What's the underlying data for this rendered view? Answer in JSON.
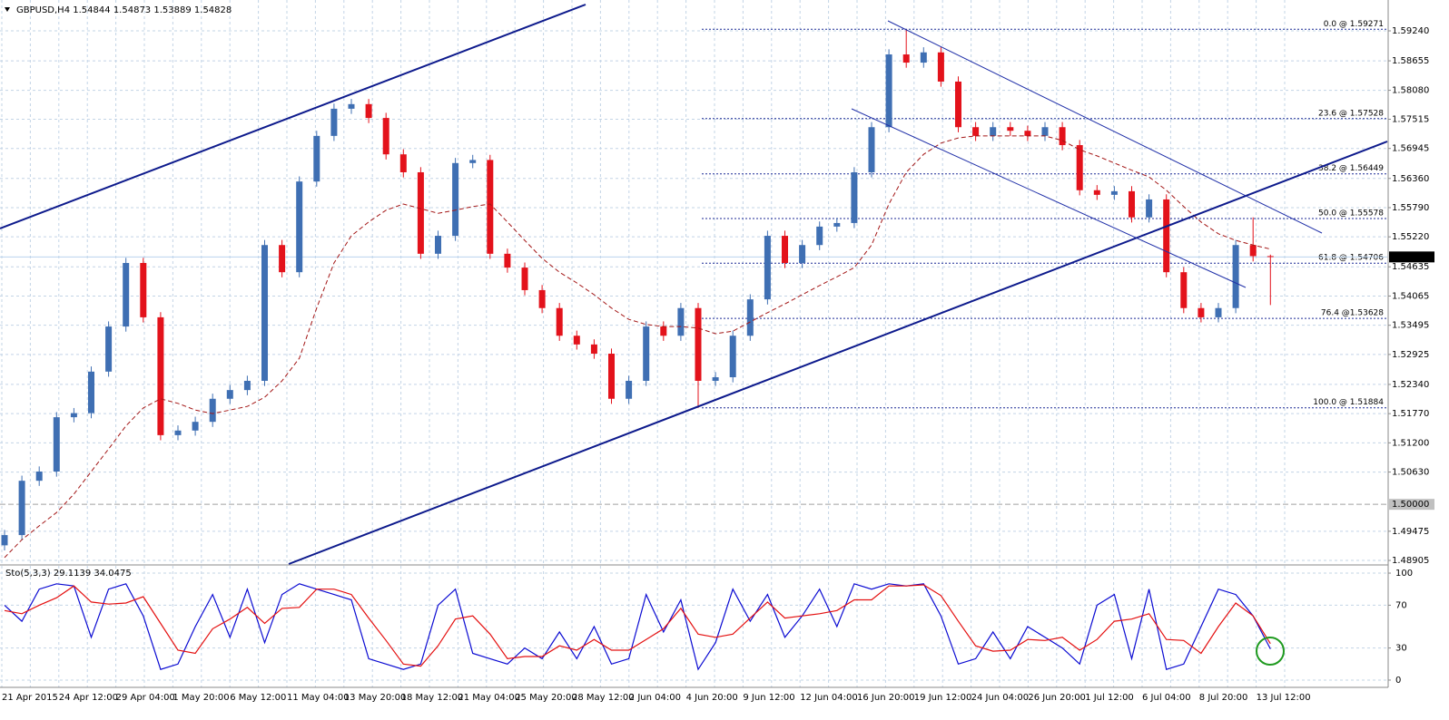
{
  "chart_data": [
    {
      "type": "candlestick",
      "symbol": "GBPUSD,H4",
      "open": [
        1.492,
        1.494,
        1.5046,
        1.5064,
        1.517,
        1.5178,
        1.5259,
        1.5347,
        1.5471,
        1.5365,
        1.5135,
        1.5144,
        1.5161,
        1.5206,
        1.5223,
        1.5241,
        1.5506,
        1.5453,
        1.563,
        1.5719,
        1.5772,
        1.5781,
        1.5754,
        1.5683,
        1.5648,
        1.5489,
        1.5524,
        1.5666,
        1.5672,
        1.5489,
        1.5462,
        1.5418,
        1.5383,
        1.5329,
        1.5312,
        1.5294,
        1.5206,
        1.5241,
        1.5347,
        1.5329,
        1.5383,
        1.5241,
        1.5248,
        1.5329,
        1.54,
        1.5524,
        1.5471,
        1.5506,
        1.5542,
        1.5549,
        1.5648,
        1.5736,
        1.5878,
        1.5862,
        1.5882,
        1.5825,
        1.5736,
        1.5719,
        1.5736,
        1.5729,
        1.5719,
        1.5736,
        1.5701,
        1.5613,
        1.5604,
        1.5611,
        1.556,
        1.5595,
        1.5453,
        1.5383,
        1.5365,
        1.5383,
        1.5506,
        1.54844
      ],
      "high": [
        1.495,
        1.5056,
        1.5074,
        1.518,
        1.5188,
        1.5269,
        1.5357,
        1.5481,
        1.5481,
        1.5375,
        1.5154,
        1.5171,
        1.5216,
        1.5233,
        1.5251,
        1.5516,
        1.5516,
        1.564,
        1.5729,
        1.5782,
        1.5791,
        1.5791,
        1.5764,
        1.5693,
        1.5658,
        1.5534,
        1.5676,
        1.5682,
        1.5682,
        1.5499,
        1.5472,
        1.5428,
        1.5393,
        1.5339,
        1.5322,
        1.5304,
        1.5251,
        1.5357,
        1.5357,
        1.5393,
        1.5393,
        1.5258,
        1.5339,
        1.541,
        1.5534,
        1.5534,
        1.5516,
        1.5552,
        1.5559,
        1.5658,
        1.5746,
        1.5888,
        1.5927,
        1.5892,
        1.5892,
        1.5835,
        1.5746,
        1.5746,
        1.5746,
        1.5739,
        1.5746,
        1.5746,
        1.5711,
        1.5623,
        1.5621,
        1.5621,
        1.5605,
        1.5605,
        1.5463,
        1.5393,
        1.5393,
        1.5516,
        1.556,
        1.54873
      ],
      "low": [
        1.491,
        1.493,
        1.5036,
        1.5054,
        1.516,
        1.5168,
        1.5249,
        1.5337,
        1.5355,
        1.5125,
        1.5125,
        1.5134,
        1.5151,
        1.5196,
        1.5213,
        1.5231,
        1.5443,
        1.5443,
        1.562,
        1.5709,
        1.5762,
        1.5744,
        1.5673,
        1.5638,
        1.5479,
        1.5479,
        1.5514,
        1.5656,
        1.5479,
        1.5452,
        1.5408,
        1.5373,
        1.5319,
        1.5302,
        1.5284,
        1.5196,
        1.5196,
        1.5231,
        1.5319,
        1.5319,
        1.5188,
        1.5231,
        1.5238,
        1.5319,
        1.539,
        1.5461,
        1.5461,
        1.5496,
        1.5532,
        1.5539,
        1.5638,
        1.5726,
        1.5852,
        1.5852,
        1.5815,
        1.5726,
        1.5709,
        1.5709,
        1.5719,
        1.5709,
        1.5709,
        1.5691,
        1.5603,
        1.5594,
        1.5594,
        1.555,
        1.555,
        1.5443,
        1.5373,
        1.5355,
        1.5355,
        1.5373,
        1.5474,
        1.53889
      ],
      "close": [
        1.494,
        1.5046,
        1.5064,
        1.517,
        1.5178,
        1.5259,
        1.5347,
        1.5471,
        1.5365,
        1.5135,
        1.5144,
        1.5161,
        1.5206,
        1.5223,
        1.5241,
        1.5506,
        1.5453,
        1.563,
        1.5719,
        1.5772,
        1.5781,
        1.5754,
        1.5683,
        1.5648,
        1.5489,
        1.5524,
        1.5666,
        1.5672,
        1.5489,
        1.5462,
        1.5418,
        1.5383,
        1.5329,
        1.5312,
        1.5294,
        1.5206,
        1.5241,
        1.5347,
        1.5329,
        1.5383,
        1.5241,
        1.5248,
        1.5329,
        1.54,
        1.5524,
        1.5471,
        1.5506,
        1.5542,
        1.5549,
        1.5648,
        1.5736,
        1.5878,
        1.5862,
        1.5882,
        1.5825,
        1.5736,
        1.5719,
        1.5736,
        1.5729,
        1.5719,
        1.5736,
        1.5701,
        1.5613,
        1.5604,
        1.5611,
        1.556,
        1.5595,
        1.5453,
        1.5383,
        1.5365,
        1.5383,
        1.5506,
        1.54844,
        1.54828
      ],
      "up_color": "#3f6fb3",
      "down_color": "#e3121b",
      "price_color": "#b9d3ee",
      "ma": {
        "color": "#a31616",
        "values": [
          1.4896,
          1.4931,
          1.4958,
          1.4984,
          1.502,
          1.5064,
          1.5108,
          1.5153,
          1.5188,
          1.5206,
          1.5197,
          1.5184,
          1.5177,
          1.5184,
          1.5191,
          1.5209,
          1.5241,
          1.5285,
          1.5383,
          1.5471,
          1.5524,
          1.5551,
          1.5574,
          1.5586,
          1.5577,
          1.5568,
          1.5574,
          1.5581,
          1.5586,
          1.5551,
          1.5515,
          1.548,
          1.5453,
          1.5432,
          1.5409,
          1.5383,
          1.5361,
          1.5351,
          1.5347,
          1.5347,
          1.5344,
          1.5333,
          1.5338,
          1.5356,
          1.5374,
          1.5391,
          1.5409,
          1.5427,
          1.5444,
          1.5462,
          1.5506,
          1.5586,
          1.5648,
          1.5683,
          1.5705,
          1.5715,
          1.5719,
          1.5719,
          1.5719,
          1.5719,
          1.5719,
          1.571,
          1.5692,
          1.568,
          1.5666,
          1.5652,
          1.5639,
          1.5613,
          1.5581,
          1.5551,
          1.5528,
          1.5515,
          1.5506,
          1.5498
        ]
      },
      "ylim": [
        1.48835,
        1.59842
      ],
      "yticks": [
        {
          "value": 1.5924,
          "label": "1.59240"
        },
        {
          "value": 1.58655,
          "label": "1.58655"
        },
        {
          "value": 1.5808,
          "label": "1.58080"
        },
        {
          "value": 1.57515,
          "label": "1.57515"
        },
        {
          "value": 1.56945,
          "label": "1.56945"
        },
        {
          "value": 1.5636,
          "label": "1.56360"
        },
        {
          "value": 1.5579,
          "label": "1.55790"
        },
        {
          "value": 1.5522,
          "label": "1.55220"
        },
        {
          "value": 1.54635,
          "label": "1.54635"
        },
        {
          "value": 1.54065,
          "label": "1.54065"
        },
        {
          "value": 1.53495,
          "label": "1.53495"
        },
        {
          "value": 1.52925,
          "label": "1.52925"
        },
        {
          "value": 1.5234,
          "label": "1.52340"
        },
        {
          "value": 1.5177,
          "label": "1.51770"
        },
        {
          "value": 1.512,
          "label": "1.51200"
        },
        {
          "value": 1.5063,
          "label": "1.50630"
        },
        {
          "value": 1.49475,
          "label": "1.49475"
        },
        {
          "value": 1.48905,
          "label": "1.48905"
        }
      ],
      "hlines": [
        {
          "value": 1.5,
          "label": "1.50000"
        }
      ],
      "fib_levels": [
        {
          "value": 1.59271,
          "label": "0.0 @ 1.59271"
        },
        {
          "value": 1.57528,
          "label": "23.6 @ 1.57528"
        },
        {
          "value": 1.56449,
          "label": "38.2 @ 1.56449"
        },
        {
          "value": 1.55578,
          "label": "50.0 @ 1.55578"
        },
        {
          "value": 1.54706,
          "label": "61.8 @ 1.54706"
        },
        {
          "value": 1.53628,
          "label": "76.4 @1.53628"
        },
        {
          "value": 1.51884,
          "label": "100.0 @ 1.51884"
        }
      ],
      "time_labels": [
        "21 Apr 2015",
        "24 Apr 12:00",
        "29 Apr 04:00",
        "1 May 20:00",
        "6 May 12:00",
        "11 May 04:00",
        "13 May 20:00",
        "18 May 12:00",
        "21 May 04:00",
        "25 May 20:00",
        "28 May 12:00",
        "2 Jun 04:00",
        "4 Jun 20:00",
        "9 Jun 12:00",
        "12 Jun 04:00",
        "16 Jun 20:00",
        "19 Jun 12:00",
        "24 Jun 04:00",
        "26 Jun 20:00",
        "1 Jul 12:00",
        "6 Jul 04:00",
        "8 Jul 20:00",
        "13 Jul 12:00"
      ],
      "grid": true
    },
    {
      "type": "line",
      "title": "Sto(5,3,3)",
      "series": [
        {
          "color": "#0a0ad2",
          "values": [
            70,
            55,
            85,
            90,
            88,
            40,
            85,
            90,
            60,
            10,
            15,
            50,
            80,
            40,
            85,
            35,
            80,
            90,
            85,
            80,
            75,
            20,
            15,
            10,
            15,
            70,
            85,
            25,
            20,
            15,
            30,
            20,
            45,
            20,
            50,
            15,
            20,
            80,
            45,
            75,
            10,
            35,
            85,
            55,
            80,
            40,
            60,
            85,
            50,
            90,
            85,
            90,
            88,
            90,
            60,
            15,
            20,
            45,
            20,
            50,
            40,
            30,
            15,
            70,
            80,
            20,
            85,
            10,
            15,
            50,
            85,
            80,
            60,
            29.1139
          ]
        },
        {
          "color": "#e41010",
          "values": [
            65,
            62,
            70,
            77,
            88,
            73,
            71,
            72,
            78,
            53,
            28,
            25,
            48,
            57,
            68,
            53,
            67,
            68,
            85,
            85,
            80,
            58,
            37,
            15,
            13,
            32,
            57,
            60,
            43,
            20,
            22,
            22,
            32,
            28,
            38,
            28,
            28,
            38,
            48,
            67,
            43,
            40,
            43,
            58,
            73,
            58,
            60,
            62,
            65,
            75,
            75,
            88,
            88,
            89,
            79,
            55,
            32,
            27,
            28,
            38,
            37,
            40,
            28,
            38,
            55,
            57,
            62,
            38,
            37,
            25,
            50,
            72,
            60,
            34.0475
          ]
        }
      ],
      "ylim": [
        -6.8,
        106.8
      ],
      "yticks": [
        0,
        30,
        70,
        100
      ],
      "grid": true
    }
  ]
}
